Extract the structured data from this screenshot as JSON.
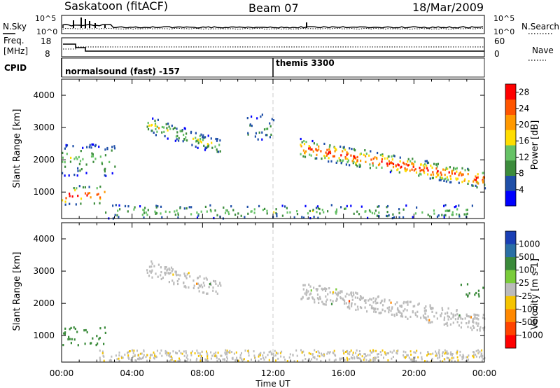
{
  "header": {
    "site": "Saskatoon (fitACF)",
    "beam": "Beam 07",
    "date": "18/Mar/2009"
  },
  "summary": {
    "nsky_label": "N.Sky",
    "nsearch_label": "N.Search",
    "noise_ticks": [
      "10^5",
      "10^0"
    ],
    "freq_label": "Freq.",
    "freq_unit": "[MHz]",
    "freq_ticks": [
      "18",
      "8"
    ],
    "nave_label": "Nave",
    "nave_ticks": [
      "60",
      "0"
    ],
    "cpid_label": "CPID",
    "cpid_segments": [
      {
        "label": "normalsound (fast) -157",
        "start_hour": 0
      },
      {
        "label": "themis 3300",
        "start_hour": 12
      }
    ]
  },
  "colors": {
    "power_scale": [
      "#0000ff",
      "#1f4fa8",
      "#3c8c3c",
      "#66c266",
      "#ffdd00",
      "#ff9900",
      "#ff5500",
      "#ff0000"
    ],
    "velocity_scale": [
      "#1a3fb5",
      "#2a6fa5",
      "#3a8a3a",
      "#7acc3a",
      "#bbbbbb",
      "#f5c400",
      "#ff8800",
      "#ff4400",
      "#ff0000"
    ],
    "ground_scatter": "#bbbbbb"
  },
  "chart_data": [
    {
      "type": "heatmap",
      "title": "",
      "ylabel": "Slant Range [km]",
      "xlabel": "",
      "xlim": [
        "00:00",
        "00:00"
      ],
      "ylim": [
        180,
        4500
      ],
      "yticks": [
        "1000",
        "2000",
        "3000",
        "4000"
      ],
      "colorbar": {
        "label": "Power [dB]",
        "ticks": [
          "4",
          "8",
          "12",
          "16",
          "20",
          "24",
          "28"
        ],
        "range": [
          0,
          30
        ]
      },
      "echo_regions": [
        {
          "t_start": 0.0,
          "t_end": 2.5,
          "range_min": 600,
          "range_max": 1200,
          "power_peak": 28
        },
        {
          "t_start": 0.0,
          "t_end": 3.0,
          "range_min": 1500,
          "range_max": 2500,
          "power_peak": 14
        },
        {
          "t_start": 4.8,
          "t_end": 9.0,
          "range_min": 2300,
          "range_max": 3400,
          "power_peak": 16
        },
        {
          "t_start": 10.5,
          "t_end": 12.0,
          "range_min": 2600,
          "range_max": 3400,
          "power_peak": 10
        },
        {
          "t_start": 13.5,
          "t_end": 24.0,
          "range_min": 1200,
          "range_max": 2600,
          "power_peak": 28
        },
        {
          "t_start": 2.0,
          "t_end": 24.0,
          "range_min": 180,
          "range_max": 600,
          "power_peak": 14
        }
      ]
    },
    {
      "type": "heatmap",
      "title": "",
      "ylabel": "Slant Range [km]",
      "xlabel": "Time UT",
      "xlim": [
        "00:00",
        "00:00"
      ],
      "xticks": [
        "00:00",
        "04:00",
        "08:00",
        "12:00",
        "16:00",
        "20:00",
        "00:00"
      ],
      "ylim": [
        180,
        4500
      ],
      "yticks": [
        "1000",
        "2000",
        "3000",
        "4000"
      ],
      "colorbar": {
        "label": "Velocity [m s-1]",
        "ticks": [
          "1000",
          "500",
          "100",
          "25",
          "-25",
          "-100",
          "-500",
          "-1000"
        ],
        "range": [
          -1000,
          1000
        ]
      },
      "echo_regions": [
        {
          "t_start": 0.0,
          "t_end": 2.5,
          "range_min": 700,
          "range_max": 1300,
          "velocity_typical": 200
        },
        {
          "t_start": 4.8,
          "t_end": 9.0,
          "range_min": 2300,
          "range_max": 3400,
          "velocity_typical": 0
        },
        {
          "t_start": 13.5,
          "t_end": 24.0,
          "range_min": 1200,
          "range_max": 2600,
          "velocity_typical": 0
        },
        {
          "t_start": 22.5,
          "t_end": 24.0,
          "range_min": 2200,
          "range_max": 2600,
          "velocity_typical": 150
        }
      ]
    }
  ]
}
